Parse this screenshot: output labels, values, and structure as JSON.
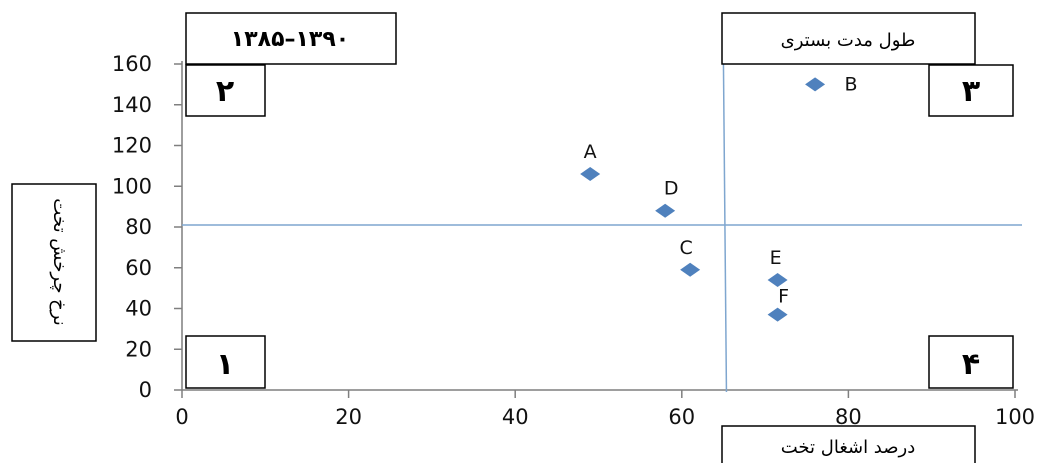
{
  "chart_data": {
    "type": "scatter",
    "title": "",
    "xlabel": "درصد اشغال تخت",
    "ylabel": "نرخ چرخش تخت",
    "period_label": "۱۳۸۵–۱۳۹۰",
    "corner_box_label": "طول مدت بستری",
    "xlim": [
      0,
      100
    ],
    "ylim": [
      0,
      160
    ],
    "x_ticks": [
      0,
      20,
      40,
      60,
      80,
      100
    ],
    "y_ticks": [
      0,
      20,
      40,
      60,
      80,
      100,
      120,
      140,
      160
    ],
    "reference_lines": {
      "x": 65,
      "y": 81
    },
    "quadrants": [
      "۱",
      "۲",
      "۳",
      "۴"
    ],
    "marker_color": "#4F81BD",
    "line_color": "#7FA6CF",
    "points": [
      {
        "label": "A",
        "x": 49,
        "y": 106
      },
      {
        "label": "B",
        "x": 76,
        "y": 150
      },
      {
        "label": "C",
        "x": 61,
        "y": 59
      },
      {
        "label": "D",
        "x": 58,
        "y": 88
      },
      {
        "label": "E",
        "x": 71.5,
        "y": 54
      },
      {
        "label": "F",
        "x": 71.5,
        "y": 37
      }
    ],
    "grid": false,
    "legend": "none"
  }
}
